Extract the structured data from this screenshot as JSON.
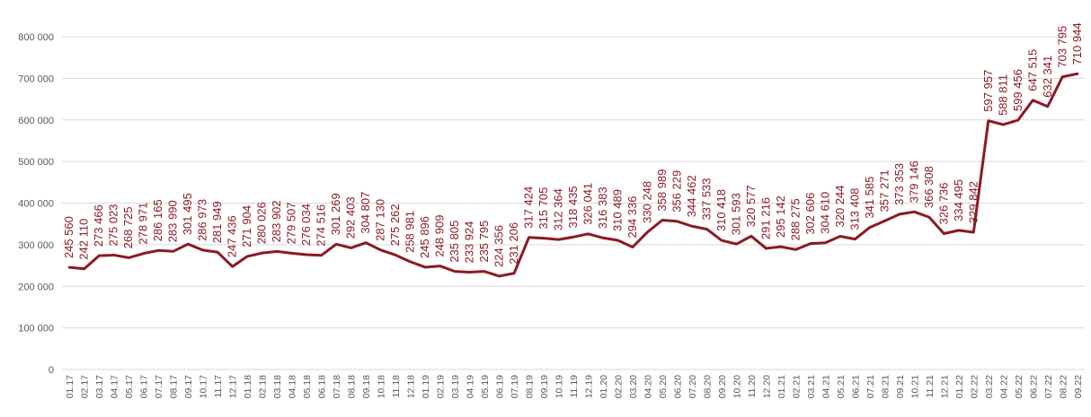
{
  "chart_data": {
    "type": "line",
    "title": "",
    "xlabel": "",
    "ylabel": "",
    "ylim": [
      0,
      800000
    ],
    "yticks": [
      0,
      100000,
      200000,
      300000,
      400000,
      500000,
      600000,
      700000,
      800000
    ],
    "ytick_labels": [
      "0",
      "100 000",
      "200 000",
      "300 000",
      "400 000",
      "500 000",
      "600 000",
      "700 000",
      "800 000"
    ],
    "grid": "horizontal",
    "legend": "none",
    "line_color": "#8B1A22",
    "label_color": "#8B1A22",
    "categories": [
      "01.17",
      "02.17",
      "03.17",
      "04.17",
      "05.17",
      "06.17",
      "07.17",
      "08.17",
      "09.17",
      "10.17",
      "11.17",
      "12.17",
      "01.18",
      "02.18",
      "03.18",
      "04.18",
      "05.18",
      "06.18",
      "07.18",
      "08.18",
      "09.18",
      "10.18",
      "11.18",
      "12.18",
      "01.19",
      "02.19",
      "03.19",
      "04.19",
      "05.19",
      "06.19",
      "07.19",
      "08.19",
      "09.19",
      "10.19",
      "11.19",
      "12.19",
      "01.20",
      "02.20",
      "03.20",
      "04.20",
      "05.20",
      "06.20",
      "07.20",
      "08.20",
      "09.20",
      "10.20",
      "11.20",
      "12.20",
      "01.21",
      "02.21",
      "03.21",
      "04.21",
      "05.21",
      "06.21",
      "07.21",
      "08.21",
      "09.21",
      "10.21",
      "11.21",
      "12.21",
      "01.22",
      "02.22",
      "03.22",
      "04.22",
      "05.22",
      "06.22",
      "07.22",
      "08.22",
      "09.22"
    ],
    "values": [
      245560,
      242110,
      273466,
      275023,
      268725,
      278971,
      286165,
      283990,
      301495,
      286973,
      281949,
      247436,
      271904,
      280026,
      283902,
      279507,
      276034,
      274516,
      301269,
      292403,
      304807,
      287130,
      275262,
      258981,
      245896,
      248909,
      235805,
      233924,
      235795,
      224356,
      231206,
      317424,
      315705,
      312364,
      318435,
      326041,
      316383,
      310489,
      294336,
      330248,
      358989,
      356229,
      344462,
      337533,
      310418,
      301593,
      320577,
      291216,
      295142,
      288275,
      302606,
      304610,
      320244,
      313408,
      341585,
      357271,
      373353,
      379146,
      366308,
      326736,
      334495,
      329842,
      597957,
      588811,
      599456,
      647515,
      632341,
      703795,
      710944
    ],
    "data_labels": [
      "245 560",
      "242 110",
      "273 466",
      "275 023",
      "268 725",
      "278 971",
      "286 165",
      "283 990",
      "301 495",
      "286 973",
      "281 949",
      "247 436",
      "271 904",
      "280 026",
      "283 902",
      "279 507",
      "276 034",
      "274 516",
      "301 269",
      "292 403",
      "304 807",
      "287 130",
      "275 262",
      "258 981",
      "245 896",
      "248 909",
      "235 805",
      "233 924",
      "235 795",
      "224 356",
      "231 206",
      "317 424",
      "315 705",
      "312 364",
      "318 435",
      "326 041",
      "316 383",
      "310 489",
      "294 336",
      "330 248",
      "358 989",
      "356 229",
      "344 462",
      "337 533",
      "310 418",
      "301 593",
      "320 577",
      "291 216",
      "295 142",
      "288 275",
      "302 606",
      "304 610",
      "320 244",
      "313 408",
      "341 585",
      "357 271",
      "373 353",
      "379 146",
      "366 308",
      "326 736",
      "334 495",
      "329 842",
      "597 957",
      "588 811",
      "599 456",
      "647 515",
      "632 341",
      "703 795",
      "710 944"
    ]
  }
}
